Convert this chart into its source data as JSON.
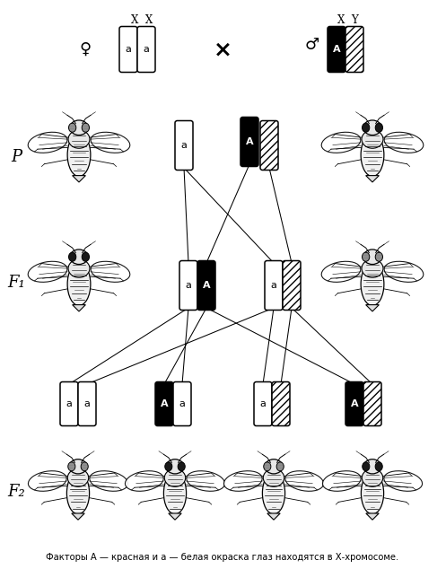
{
  "caption": "Факторы А — красная и а — белая окраска глаз находятся в Х-хромосоме.",
  "caption_fontsize": 7.2,
  "background_color": "#ffffff",
  "label_P": "P",
  "label_F1": "F₁",
  "label_F2": "F₂",
  "label_XX": "X  X",
  "label_XY": "X  Y",
  "cross_symbol": "×",
  "female_symbol": "♀",
  "male_symbol": "♂",
  "text_color": "#000000",
  "fly_scale": 1.0
}
